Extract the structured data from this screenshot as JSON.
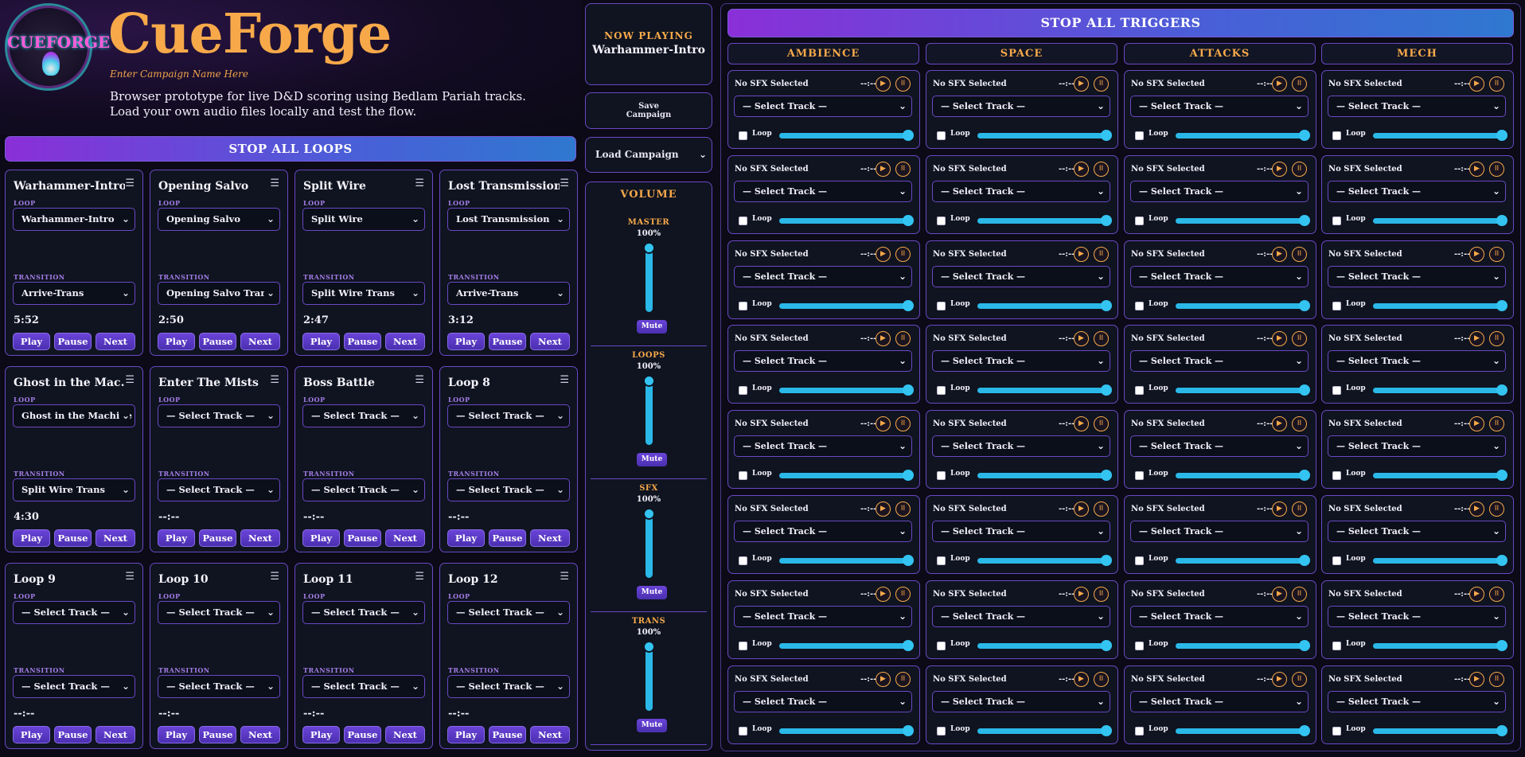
{
  "header": {
    "title": "CueForge",
    "logo_text": "CUEFORGE",
    "campaign_placeholder": "Enter Campaign Name Here",
    "description": "Browser prototype for live D&D scoring using Bedlam Pariah tracks. Load your own audio files locally and test the flow."
  },
  "stop_loops_label": "STOP ALL LOOPS",
  "stop_triggers_label": "STOP ALL TRIGGERS",
  "loop_label": "LOOP",
  "transition_label": "TRANSITION",
  "buttons": {
    "play": "Play",
    "pause": "Pause",
    "next": "Next"
  },
  "menu_icon": "☰",
  "loops": [
    {
      "title": "Warhammer-Intro",
      "loop": "Warhammer-Intro",
      "transition": "Arrive-Trans",
      "time": "5:52"
    },
    {
      "title": "Opening Salvo",
      "loop": "Opening Salvo",
      "transition": "Opening Salvo Trans",
      "time": "2:50"
    },
    {
      "title": "Split Wire",
      "loop": "Split Wire",
      "transition": "Split Wire Trans",
      "time": "2:47"
    },
    {
      "title": "Lost Transmission",
      "loop": "Lost Transmission",
      "transition": "Arrive-Trans",
      "time": "3:12"
    },
    {
      "title": "Ghost in the Mac...",
      "loop": "Ghost in the Machine",
      "transition": "Split Wire Trans",
      "time": "4:30"
    },
    {
      "title": "Enter The Mists",
      "loop": "— Select Track —",
      "transition": "— Select Track —",
      "time": "--:--"
    },
    {
      "title": "Boss Battle",
      "loop": "— Select Track —",
      "transition": "— Select Track —",
      "time": "--:--"
    },
    {
      "title": "Loop 8",
      "loop": "— Select Track —",
      "transition": "— Select Track —",
      "time": "--:--"
    },
    {
      "title": "Loop 9",
      "loop": "— Select Track —",
      "transition": "— Select Track —",
      "time": "--:--"
    },
    {
      "title": "Loop 10",
      "loop": "— Select Track —",
      "transition": "— Select Track —",
      "time": "--:--"
    },
    {
      "title": "Loop 11",
      "loop": "— Select Track —",
      "transition": "— Select Track —",
      "time": "--:--"
    },
    {
      "title": "Loop 12",
      "loop": "— Select Track —",
      "transition": "— Select Track —",
      "time": "--:--"
    }
  ],
  "now_playing": {
    "label": "NOW PLAYING",
    "track": "Warhammer-Intro"
  },
  "save_campaign": "Save Campaign",
  "load_campaign": "Load Campaign",
  "volume": {
    "title": "VOLUME",
    "mute_label": "Mute",
    "channels": [
      {
        "name": "MASTER",
        "percent": "100%",
        "level": 1.0
      },
      {
        "name": "LOOPS",
        "percent": "100%",
        "level": 1.0
      },
      {
        "name": "SFX",
        "percent": "100%",
        "level": 1.0
      },
      {
        "name": "TRANS",
        "percent": "100%",
        "level": 1.0
      }
    ]
  },
  "trigger_columns": [
    "AMBIENCE",
    "SPACE",
    "ATTACKS",
    "MECH"
  ],
  "trigger": {
    "no_sfx": "No SFX Selected",
    "time": "--:--",
    "select": "— Select Track —",
    "loop_label": "Loop",
    "play_icon": "▶",
    "pause_icon": "II",
    "chevron": "⌄",
    "rows": 8,
    "volume_level": 1.0
  },
  "colors": {
    "accent": "#f7a94a",
    "purple": "#6a48c4",
    "cyan": "#2ab8e8"
  }
}
